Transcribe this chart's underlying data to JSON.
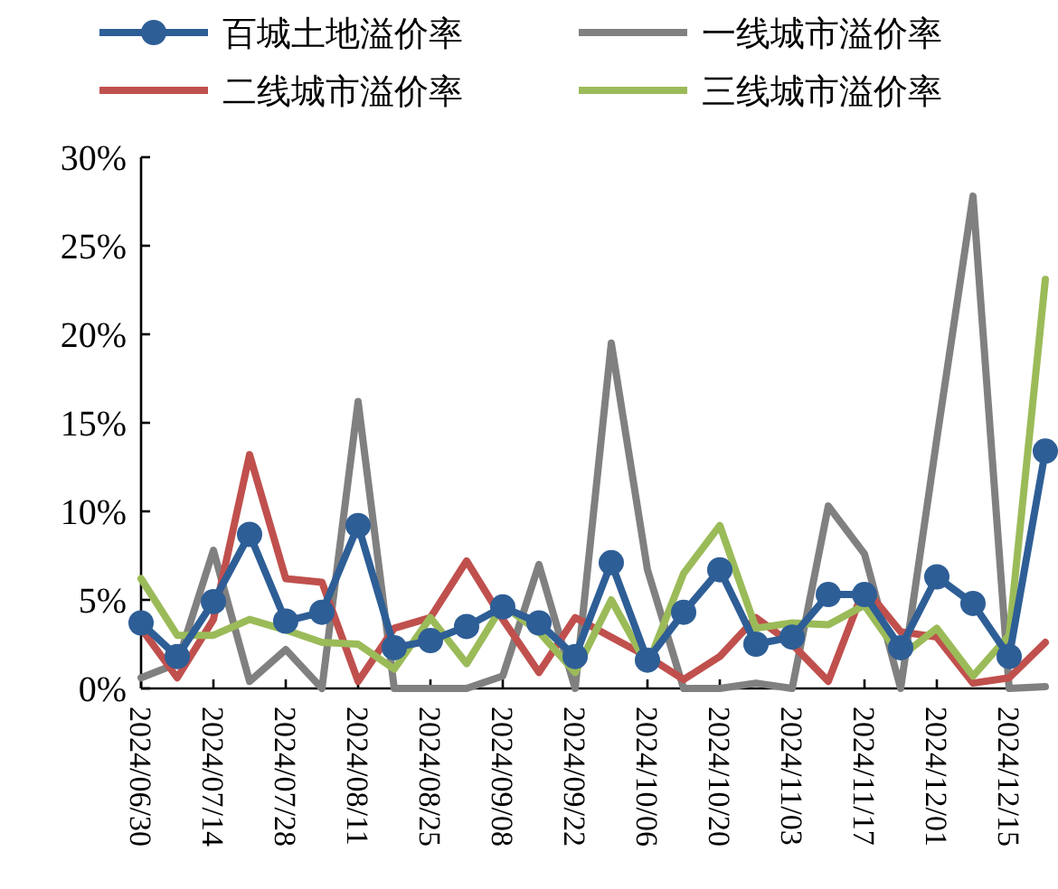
{
  "chart_data": {
    "type": "line",
    "categories": [
      "2024/06/30",
      null,
      "2024/07/14",
      null,
      "2024/07/28",
      null,
      "2024/08/11",
      null,
      "2024/08/25",
      null,
      "2024/09/08",
      null,
      "2024/09/22",
      null,
      "2024/10/06",
      null,
      "2024/10/20",
      null,
      "2024/11/03",
      null,
      "2024/11/17",
      null,
      "2024/12/01",
      null,
      "2024/12/15",
      null
    ],
    "series": [
      {
        "name": "百城土地溢价率",
        "color": "#2e5e96",
        "marker": "circle",
        "values": [
          3.7,
          1.8,
          4.9,
          8.7,
          3.8,
          4.3,
          9.2,
          2.3,
          2.7,
          3.5,
          4.6,
          3.7,
          1.8,
          7.1,
          1.6,
          4.3,
          6.7,
          2.5,
          2.9,
          5.3,
          5.3,
          2.3,
          6.3,
          4.8,
          1.8,
          13.4
        ]
      },
      {
        "name": "一线城市溢价率",
        "color": "#808080",
        "values": [
          0.6,
          1.4,
          7.8,
          0.4,
          2.2,
          0,
          16.2,
          0,
          0,
          0,
          0.7,
          7.0,
          0,
          19.5,
          6.7,
          0,
          0,
          0.3,
          0,
          10.3,
          7.6,
          0,
          14.1,
          27.8,
          0,
          0.1
        ]
      },
      {
        "name": "二线城市溢价率",
        "color": "#c0504d",
        "values": [
          3.4,
          0.6,
          3.9,
          13.2,
          6.2,
          6.0,
          0.4,
          3.4,
          4.0,
          7.2,
          3.9,
          0.9,
          4.0,
          2.9,
          1.8,
          0.5,
          1.8,
          4.0,
          2.5,
          0.4,
          5.7,
          3.2,
          2.9,
          0.3,
          0.6,
          2.6
        ]
      },
      {
        "name": "三线城市溢价率",
        "color": "#9bbb59",
        "values": [
          6.2,
          3.0,
          3.0,
          3.9,
          3.3,
          2.6,
          2.5,
          1.1,
          4.0,
          1.4,
          4.7,
          3.2,
          0.9,
          5.0,
          1.3,
          6.5,
          9.2,
          3.4,
          3.7,
          3.6,
          4.7,
          1.8,
          3.4,
          0.7,
          3.0,
          23.1
        ]
      }
    ],
    "ylim": [
      0,
      30
    ],
    "yticks": [
      {
        "value": 0,
        "label": "0%"
      },
      {
        "value": 5,
        "label": "5%"
      },
      {
        "value": 10,
        "label": "10%"
      },
      {
        "value": 15,
        "label": "15%"
      },
      {
        "value": 20,
        "label": "20%"
      },
      {
        "value": 25,
        "label": "25%"
      },
      {
        "value": 30,
        "label": "30%"
      }
    ],
    "grid": false,
    "legend": "top",
    "line_style": "solid"
  }
}
